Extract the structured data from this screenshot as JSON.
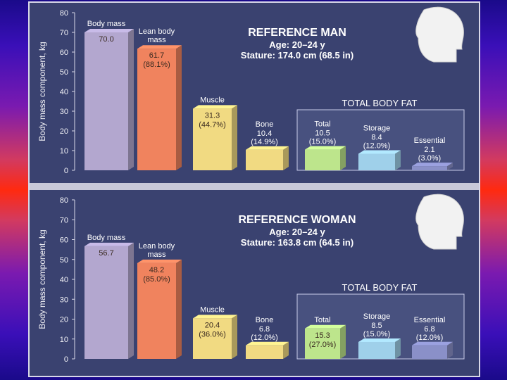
{
  "chart_data": [
    {
      "type": "bar",
      "title": "REFERENCE MAN",
      "subtitle_lines": [
        "Age: 20–24 y",
        "Stature: 174.0 cm (68.5 in)"
      ],
      "ylabel": "Body mass component, kg",
      "ylim": [
        0,
        80
      ],
      "yticks": [
        "0",
        "10",
        "20",
        "30",
        "40",
        "50",
        "60",
        "70",
        "80"
      ],
      "box_title": "TOTAL BODY FAT",
      "bars": [
        {
          "label_lines": [
            "Body mass"
          ],
          "value": 70.0,
          "value_label": "70.0",
          "pct_label": "",
          "color": "#b3a7cf"
        },
        {
          "label_lines": [
            "Lean body",
            "mass"
          ],
          "value": 61.7,
          "value_label": "61.7",
          "pct_label": "(88.1%)",
          "color": "#f0835e"
        },
        {
          "label_lines": [
            "Muscle"
          ],
          "value": 31.3,
          "value_label": "31.3",
          "pct_label": "(44.7%)",
          "color": "#f1da82"
        },
        {
          "label_lines": [
            "Bone"
          ],
          "value": 10.4,
          "value_label": "10.4",
          "pct_label": "(14.9%)",
          "color": "#f1da82"
        },
        {
          "label_lines": [
            "Total"
          ],
          "value": 10.5,
          "value_label": "10.5",
          "pct_label": "(15.0%)",
          "color": "#bde58c"
        },
        {
          "label_lines": [
            "Storage"
          ],
          "value": 8.4,
          "value_label": "8.4",
          "pct_label": "(12.0%)",
          "color": "#9fd0ea"
        },
        {
          "label_lines": [
            "Essential"
          ],
          "value": 2.1,
          "value_label": "2.1",
          "pct_label": "(3.0%)",
          "color": "#8a90c8"
        }
      ]
    },
    {
      "type": "bar",
      "title": "REFERENCE WOMAN",
      "subtitle_lines": [
        "Age: 20–24 y",
        "Stature: 163.8 cm (64.5 in)"
      ],
      "ylabel": "Body mass component, kg",
      "ylim": [
        0,
        80
      ],
      "yticks": [
        "0",
        "10",
        "20",
        "30",
        "40",
        "50",
        "60",
        "70",
        "80"
      ],
      "box_title": "TOTAL BODY FAT",
      "bars": [
        {
          "label_lines": [
            "Body mass"
          ],
          "value": 56.7,
          "value_label": "56.7",
          "pct_label": "",
          "color": "#b3a7cf"
        },
        {
          "label_lines": [
            "Lean body",
            "mass"
          ],
          "value": 48.2,
          "value_label": "48.2",
          "pct_label": "(85.0%)",
          "color": "#f0835e"
        },
        {
          "label_lines": [
            "Muscle"
          ],
          "value": 20.4,
          "value_label": "20.4",
          "pct_label": "(36.0%)",
          "color": "#f1da82"
        },
        {
          "label_lines": [
            "Bone"
          ],
          "value": 6.8,
          "value_label": "6.8",
          "pct_label": "(12.0%)",
          "color": "#f1da82"
        },
        {
          "label_lines": [
            "Total"
          ],
          "value": 15.3,
          "value_label": "15.3",
          "pct_label": "(27.0%)",
          "color": "#bde58c"
        },
        {
          "label_lines": [
            "Storage"
          ],
          "value": 8.5,
          "value_label": "8.5",
          "pct_label": "(15.0%)",
          "color": "#9fd0ea"
        },
        {
          "label_lines": [
            "Essential"
          ],
          "value": 6.8,
          "value_label": "6.8",
          "pct_label": "(12.0%)",
          "color": "#8a90c8"
        }
      ]
    }
  ]
}
